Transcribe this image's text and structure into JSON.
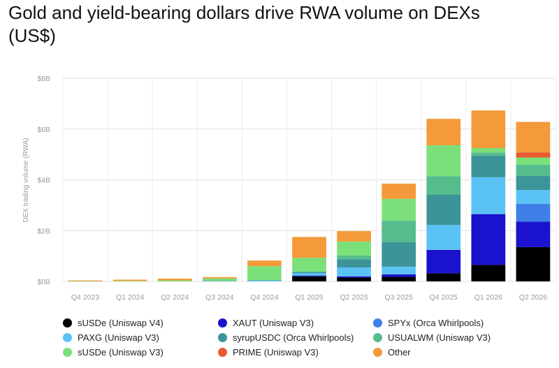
{
  "title": "Gold and yield-bearing dollars drive RWA volume on DEXs (US$)",
  "chart_data": {
    "type": "bar",
    "stacked": true,
    "title": "Gold and yield-bearing dollars drive RWA volume on DEXs (US$)",
    "ylabel": "DEX trading volume (RWA)",
    "xlabel": "",
    "ylim": [
      0,
      8
    ],
    "yticks": [
      "$0B",
      "$2B",
      "$4B",
      "$6B",
      "$8B"
    ],
    "grid": true,
    "legend_position": "bottom",
    "categories": [
      "Q4 2023",
      "Q1 2024",
      "Q2 2024",
      "Q3 2024",
      "Q4 2024",
      "Q1 2025",
      "Q2 2025",
      "Q3 2025",
      "Q4 2025",
      "Q1 2026",
      "Q2 2026"
    ],
    "series": [
      {
        "name": "sUSDe (Uniswap V4)",
        "color": "#000000",
        "values": [
          0,
          0,
          0,
          0,
          0,
          0.2,
          0.15,
          0.18,
          0.32,
          0.65,
          1.35
        ]
      },
      {
        "name": "XAUT (Uniswap V3)",
        "color": "#1a12cc",
        "values": [
          0,
          0,
          0,
          0,
          0,
          0.03,
          0.05,
          0.1,
          0.92,
          2.0,
          1.0
        ]
      },
      {
        "name": "SPYx (Orca Whirlpools)",
        "color": "#3f7fe8",
        "values": [
          0,
          0,
          0,
          0,
          0,
          0,
          0,
          0,
          0,
          0,
          0.7
        ]
      },
      {
        "name": "PAXG (Uniswap V3)",
        "color": "#5bc2f5",
        "values": [
          0,
          0,
          0,
          0.01,
          0.03,
          0.1,
          0.35,
          0.3,
          0.98,
          1.45,
          0.55
        ]
      },
      {
        "name": "syrupUSDC (Orca Whirlpools)",
        "color": "#3c9498",
        "values": [
          0,
          0,
          0,
          0.01,
          0.02,
          0.05,
          0.32,
          0.97,
          1.2,
          0.85,
          0.55
        ]
      },
      {
        "name": "USUALWM (Uniswap V3)",
        "color": "#55bd8c",
        "values": [
          0,
          0,
          0,
          0,
          0,
          0,
          0.15,
          0.85,
          0.72,
          0.13,
          0.45
        ]
      },
      {
        "name": "sUSDe (Uniswap V3)",
        "color": "#7ce07a",
        "values": [
          0.01,
          0.02,
          0.04,
          0.1,
          0.55,
          0.55,
          0.55,
          0.85,
          1.22,
          0.17,
          0.28
        ]
      },
      {
        "name": "PRIME (Uniswap V3)",
        "color": "#ea5a30",
        "values": [
          0,
          0,
          0,
          0,
          0,
          0,
          0,
          0,
          0,
          0,
          0.2
        ]
      },
      {
        "name": "Other",
        "color": "#f49a3a",
        "values": [
          0.03,
          0.05,
          0.07,
          0.05,
          0.22,
          0.82,
          0.41,
          0.6,
          1.04,
          1.48,
          1.2
        ]
      }
    ]
  }
}
